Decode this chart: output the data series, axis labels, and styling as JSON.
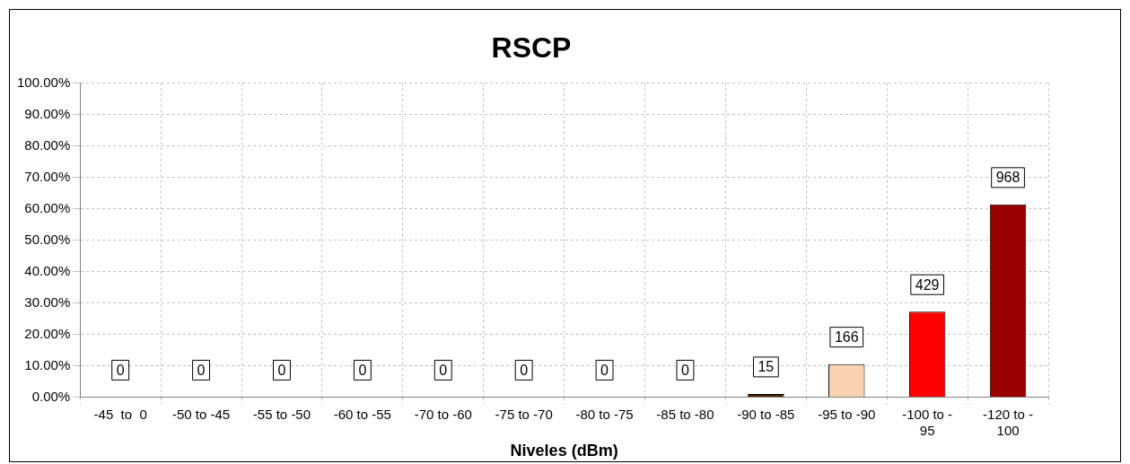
{
  "chart_data": {
    "type": "bar",
    "title": "RSCP",
    "xlabel": "Niveles (dBm)",
    "categories": [
      "-45  to  0",
      "-50 to -45",
      "-55 to -50",
      "-60 to -55",
      "-70 to -60",
      "-75 to -70",
      "-80 to -75",
      "-85 to -80",
      "-90 to -85",
      "-95 to -90",
      "-100 to - 95",
      "-120 to - 100"
    ],
    "values": [
      0,
      0,
      0,
      0,
      0,
      0,
      0,
      0,
      1,
      10.5,
      27.2,
      61.3
    ],
    "annotations": [
      {
        "text": "0",
        "x": "-45  to  0",
        "y": 0
      },
      {
        "text": "0",
        "x": "-50 to -45",
        "y": 0
      },
      {
        "text": "0",
        "x": "-55 to -50",
        "y": 0
      },
      {
        "text": "0",
        "x": "-60 to -55",
        "y": 0
      },
      {
        "text": "0",
        "x": "-70 to -60",
        "y": 0
      },
      {
        "text": "0",
        "x": "-75 to -70",
        "y": 0
      },
      {
        "text": "0",
        "x": "-80 to -75",
        "y": 0
      },
      {
        "text": "0",
        "x": "-85 to -80",
        "y": 0
      },
      {
        "text": "15",
        "x": "-90 to -85",
        "y": 1
      },
      {
        "text": "166",
        "x": "-95 to -90",
        "y": 10.5
      },
      {
        "text": "429",
        "x": "-100 to - 95",
        "y": 27.2
      },
      {
        "text": "968",
        "x": "-120 to - 100",
        "y": 61.3
      }
    ],
    "colors": [
      "#993300",
      "#993300",
      "#993300",
      "#993300",
      "#993300",
      "#993300",
      "#993300",
      "#993300",
      "#4d2600",
      "#f9d3b0",
      "#ff0000",
      "#990000"
    ],
    "ylim": [
      0,
      100
    ],
    "yticks": [
      {
        "value": 0,
        "label": "0.00%"
      },
      {
        "value": 10,
        "label": "10.00%"
      },
      {
        "value": 20,
        "label": "20.00%"
      },
      {
        "value": 30,
        "label": "30.00%"
      },
      {
        "value": 40,
        "label": "40.00%"
      },
      {
        "value": 50,
        "label": "50.00%"
      },
      {
        "value": 60,
        "label": "60.00%"
      },
      {
        "value": 70,
        "label": "70.00%"
      },
      {
        "value": 80,
        "label": "80.00%"
      },
      {
        "value": 90,
        "label": "90.00%"
      },
      {
        "value": 100,
        "label": "100.00%"
      }
    ],
    "grid": true,
    "line_style": "dashed"
  }
}
